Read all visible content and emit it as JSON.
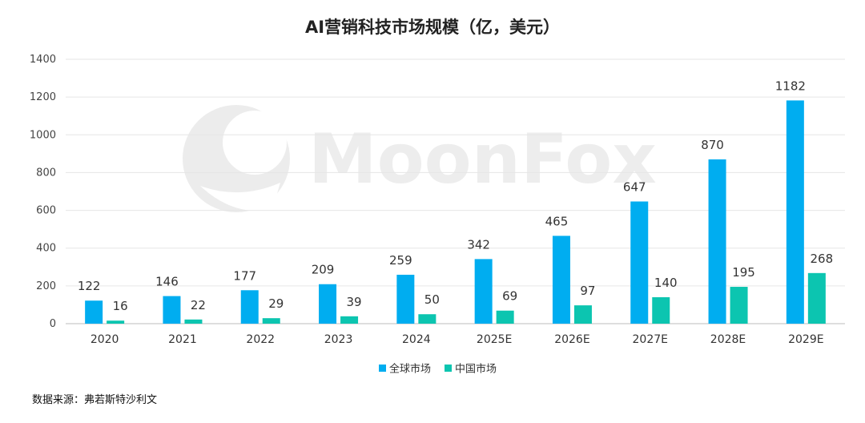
{
  "chart_data": {
    "type": "bar",
    "title": "AI营销科技市场规模（亿，美元）",
    "categories": [
      "2020",
      "2021",
      "2022",
      "2023",
      "2024",
      "2025E",
      "2026E",
      "2027E",
      "2028E",
      "2029E"
    ],
    "series": [
      {
        "name": "全球市场",
        "color": "#00adf0",
        "values": [
          122,
          146,
          177,
          209,
          259,
          342,
          465,
          647,
          870,
          1182
        ]
      },
      {
        "name": "中国市场",
        "color": "#0cc5b0",
        "values": [
          16,
          22,
          29,
          39,
          50,
          69,
          97,
          140,
          195,
          268
        ]
      }
    ],
    "ylim": [
      0,
      1400
    ],
    "yticks": [
      0,
      200,
      400,
      600,
      800,
      1000,
      1200,
      1400
    ],
    "grid": true,
    "legend": "bottom-center"
  },
  "watermark": "MoonFox",
  "source": "数据来源：弗若斯特沙利文"
}
